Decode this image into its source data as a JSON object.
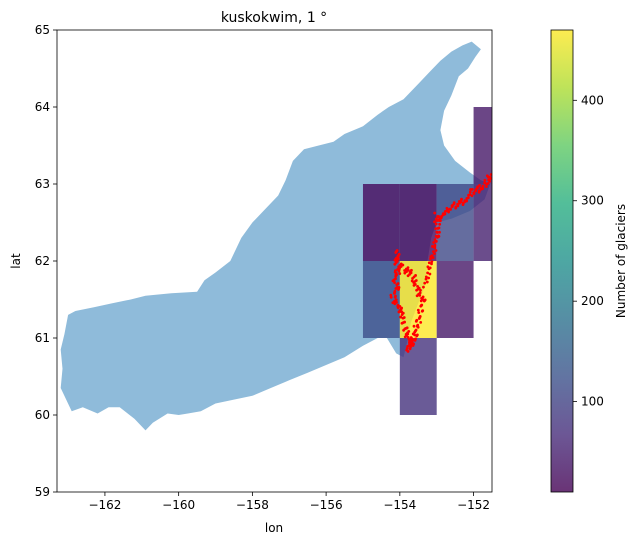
{
  "chart_data": {
    "type": "heatmap",
    "title": "kuskokwim, 1 °",
    "xlabel": "lon",
    "ylabel": "lat",
    "xlim": [
      -163.3,
      -151.5
    ],
    "ylim": [
      59,
      65
    ],
    "x_ticks": [
      -162,
      -160,
      -158,
      -156,
      -154,
      -152
    ],
    "x_tick_labels": [
      "−162",
      "−160",
      "−158",
      "−156",
      "−154",
      "−152"
    ],
    "y_ticks": [
      59,
      60,
      61,
      62,
      63,
      64,
      65
    ],
    "y_tick_labels": [
      "59",
      "60",
      "61",
      "62",
      "63",
      "64",
      "65"
    ],
    "colorbar": {
      "label": "Number of glaciers",
      "range": [
        10,
        470
      ],
      "colormap": "viridis",
      "alpha": 0.8,
      "ticks": [
        100,
        200,
        300,
        400
      ],
      "tick_labels": [
        "100",
        "200",
        "300",
        "400"
      ]
    },
    "cells": [
      {
        "lon": -155,
        "lat": 62,
        "count": 20
      },
      {
        "lon": -154,
        "lat": 62,
        "count": 20
      },
      {
        "lon": -153,
        "lat": 62,
        "count": 110
      },
      {
        "lon": -152,
        "lat": 62,
        "count": 50
      },
      {
        "lon": -152,
        "lat": 63,
        "count": 40
      },
      {
        "lon": -155,
        "lat": 61,
        "count": 120
      },
      {
        "lon": -154,
        "lat": 61,
        "count": 470
      },
      {
        "lon": -153,
        "lat": 61,
        "count": 40
      },
      {
        "lon": -154,
        "lat": 60,
        "count": 75
      }
    ],
    "basin_fill_color": "#8fbbda",
    "glacier_point_color": "#ff0000",
    "basin_outline": [
      [
        -163.1,
        61.05
      ],
      [
        -163.0,
        61.3
      ],
      [
        -162.8,
        61.35
      ],
      [
        -162.3,
        61.4
      ],
      [
        -161.8,
        61.45
      ],
      [
        -161.3,
        61.5
      ],
      [
        -160.9,
        61.55
      ],
      [
        -160.2,
        61.58
      ],
      [
        -159.5,
        61.6
      ],
      [
        -159.3,
        61.75
      ],
      [
        -159.0,
        61.85
      ],
      [
        -158.6,
        62.0
      ],
      [
        -158.3,
        62.3
      ],
      [
        -158.0,
        62.5
      ],
      [
        -157.7,
        62.65
      ],
      [
        -157.3,
        62.85
      ],
      [
        -157.1,
        63.05
      ],
      [
        -156.9,
        63.3
      ],
      [
        -156.6,
        63.45
      ],
      [
        -156.2,
        63.5
      ],
      [
        -155.8,
        63.55
      ],
      [
        -155.5,
        63.65
      ],
      [
        -155.0,
        63.75
      ],
      [
        -154.6,
        63.9
      ],
      [
        -154.3,
        64.0
      ],
      [
        -153.9,
        64.1
      ],
      [
        -153.5,
        64.3
      ],
      [
        -153.2,
        64.45
      ],
      [
        -152.9,
        64.6
      ],
      [
        -152.6,
        64.72
      ],
      [
        -152.3,
        64.8
      ],
      [
        -152.05,
        64.85
      ],
      [
        -151.8,
        64.75
      ],
      [
        -151.95,
        64.65
      ],
      [
        -152.15,
        64.5
      ],
      [
        -152.4,
        64.4
      ],
      [
        -152.6,
        64.15
      ],
      [
        -152.8,
        63.95
      ],
      [
        -152.9,
        63.7
      ],
      [
        -152.8,
        63.5
      ],
      [
        -152.5,
        63.3
      ],
      [
        -152.1,
        63.15
      ],
      [
        -151.8,
        63.05
      ],
      [
        -151.55,
        63.0
      ],
      [
        -151.7,
        62.8
      ],
      [
        -152.1,
        62.65
      ],
      [
        -152.6,
        62.55
      ],
      [
        -153.0,
        62.5
      ],
      [
        -153.15,
        62.3
      ],
      [
        -153.25,
        62.0
      ],
      [
        -153.3,
        61.7
      ],
      [
        -153.5,
        61.45
      ],
      [
        -153.7,
        61.2
      ],
      [
        -153.8,
        60.95
      ],
      [
        -153.9,
        60.75
      ],
      [
        -154.1,
        60.8
      ],
      [
        -154.35,
        61.0
      ],
      [
        -154.6,
        61.0
      ],
      [
        -155.0,
        60.9
      ],
      [
        -155.5,
        60.75
      ],
      [
        -156.0,
        60.65
      ],
      [
        -156.5,
        60.55
      ],
      [
        -157.0,
        60.45
      ],
      [
        -157.5,
        60.35
      ],
      [
        -158.0,
        60.25
      ],
      [
        -158.5,
        60.2
      ],
      [
        -159.0,
        60.15
      ],
      [
        -159.4,
        60.05
      ],
      [
        -159.75,
        60.02
      ],
      [
        -160.0,
        60.0
      ],
      [
        -160.3,
        60.02
      ],
      [
        -160.7,
        59.9
      ],
      [
        -160.9,
        59.8
      ],
      [
        -161.2,
        59.95
      ],
      [
        -161.6,
        60.1
      ],
      [
        -161.9,
        60.1
      ],
      [
        -162.2,
        60.02
      ],
      [
        -162.6,
        60.1
      ],
      [
        -162.9,
        60.05
      ],
      [
        -163.05,
        60.2
      ],
      [
        -163.2,
        60.35
      ],
      [
        -163.15,
        60.6
      ],
      [
        -163.2,
        60.85
      ]
    ],
    "glacier_tracks": [
      [
        [
          -154.05,
          62.15
        ],
        [
          -154.1,
          62.0
        ],
        [
          -154.0,
          61.9
        ],
        [
          -154.15,
          61.8
        ],
        [
          -154.05,
          61.65
        ],
        [
          -154.2,
          61.5
        ],
        [
          -154.0,
          61.4
        ],
        [
          -153.95,
          61.3
        ],
        [
          -153.85,
          61.1
        ],
        [
          -153.75,
          61.0
        ],
        [
          -153.65,
          60.95
        ]
      ],
      [
        [
          -153.95,
          61.95
        ],
        [
          -153.75,
          61.85
        ],
        [
          -153.6,
          61.75
        ],
        [
          -153.5,
          61.6
        ],
        [
          -153.35,
          61.5
        ],
        [
          -153.45,
          61.3
        ],
        [
          -153.55,
          61.15
        ],
        [
          -153.6,
          61.0
        ],
        [
          -153.7,
          60.9
        ],
        [
          -153.8,
          60.85
        ]
      ],
      [
        [
          -153.3,
          61.7
        ],
        [
          -153.2,
          61.9
        ],
        [
          -153.1,
          62.1
        ],
        [
          -153.0,
          62.3
        ],
        [
          -152.95,
          62.45
        ],
        [
          -153.0,
          62.6
        ]
      ],
      [
        [
          -153.0,
          62.55
        ],
        [
          -152.8,
          62.6
        ],
        [
          -152.6,
          62.7
        ],
        [
          -152.4,
          62.75
        ],
        [
          -152.2,
          62.8
        ],
        [
          -152.0,
          62.9
        ],
        [
          -151.8,
          62.95
        ],
        [
          -151.6,
          63.05
        ],
        [
          -151.5,
          63.1
        ]
      ]
    ]
  }
}
